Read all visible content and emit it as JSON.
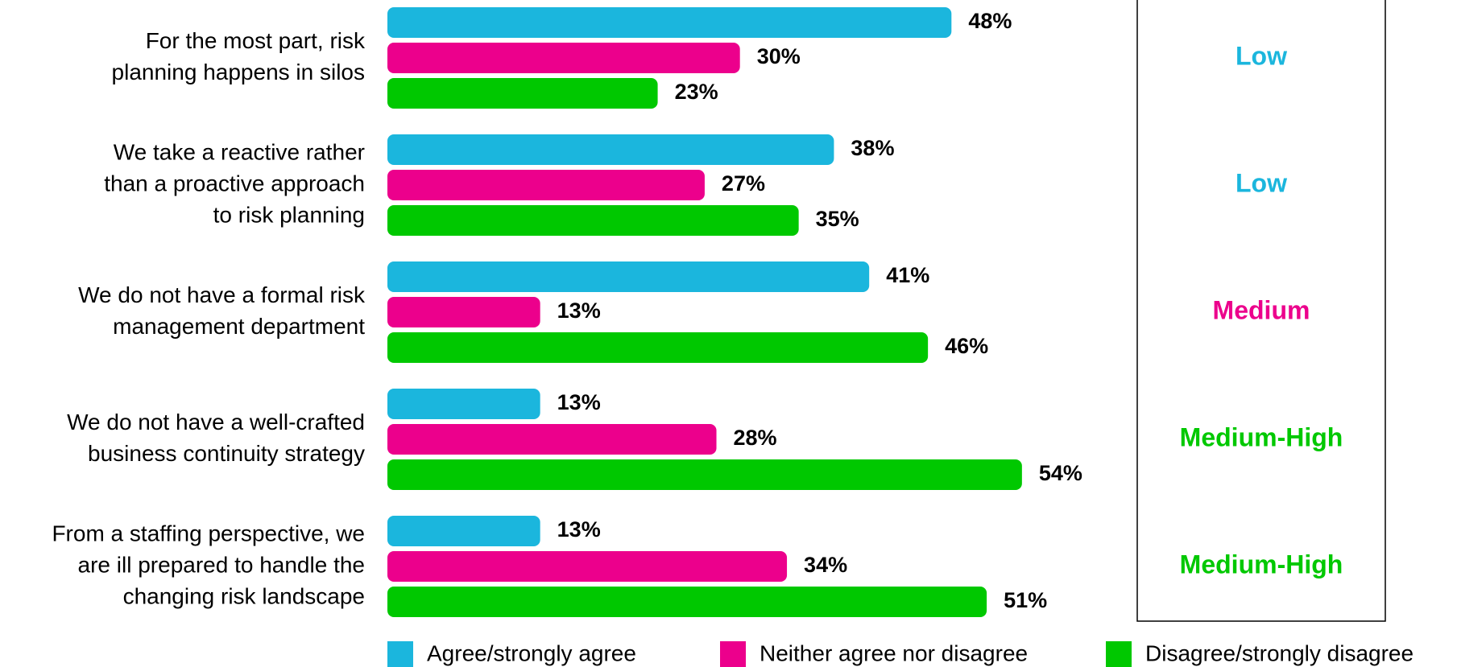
{
  "chart_data": {
    "type": "bar",
    "orientation": "horizontal",
    "categories": [
      [
        "For the most part, risk",
        "planning happens in silos"
      ],
      [
        "We take a reactive rather",
        "than a proactive approach",
        "to risk planning"
      ],
      [
        "We do not have a formal risk",
        "management department"
      ],
      [
        "We do not have a well-crafted",
        "business continuity strategy"
      ],
      [
        "From a staffing perspective, we",
        "are ill prepared to handle the",
        "changing risk landscape"
      ]
    ],
    "series": [
      {
        "name": "Agree/strongly agree",
        "color": "#1bb6dd",
        "values": [
          48,
          38,
          41,
          13,
          13
        ],
        "value_labels": [
          "48%",
          "38%",
          "41%",
          "13%",
          "13%"
        ]
      },
      {
        "name": "Neither agree nor disagree",
        "color": "#ec008c",
        "values": [
          30,
          27,
          13,
          28,
          34
        ],
        "value_labels": [
          "30%",
          "27%",
          "13%",
          "28%",
          "34%"
        ]
      },
      {
        "name": "Disagree/strongly disagree",
        "color": "#00c800",
        "values": [
          23,
          35,
          46,
          54,
          51
        ],
        "value_labels": [
          "23%",
          "35%",
          "46%",
          "54%",
          "51%"
        ]
      }
    ],
    "xlim": [
      0,
      100
    ],
    "ratings": [
      {
        "text": "Low",
        "color": "#1bb6dd"
      },
      {
        "text": "Low",
        "color": "#1bb6dd"
      },
      {
        "text": "Medium",
        "color": "#ec008c"
      },
      {
        "text": "Medium-High",
        "color": "#00c800"
      },
      {
        "text": "Medium-High",
        "color": "#00c800"
      }
    ],
    "legend": "bottom"
  }
}
